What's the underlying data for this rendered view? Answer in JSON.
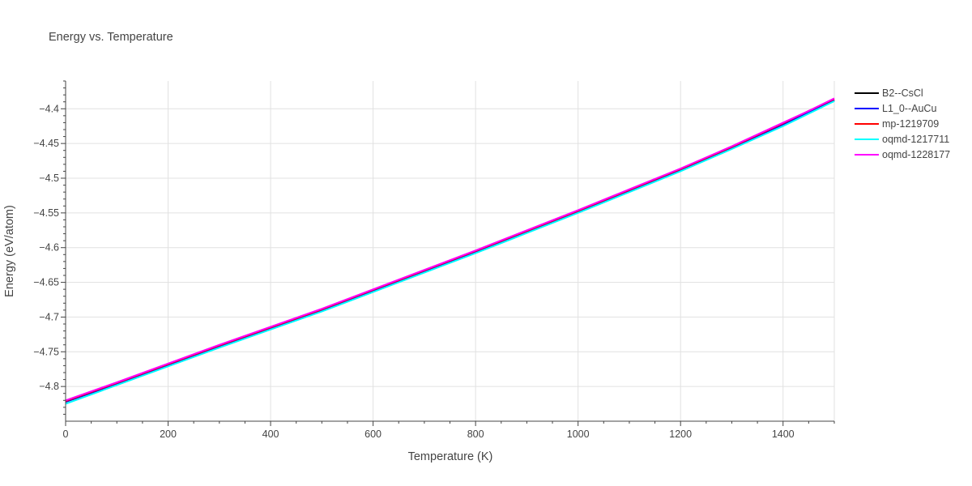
{
  "chart_data": {
    "type": "line",
    "title": "Energy vs. Temperature",
    "xlabel": "Temperature (K)",
    "ylabel": "Energy (eV/atom)",
    "xlim": [
      0,
      1500
    ],
    "ylim": [
      -4.85,
      -4.36
    ],
    "x_ticks": [
      0,
      200,
      400,
      600,
      800,
      1000,
      1200,
      1400
    ],
    "y_ticks": [
      -4.8,
      -4.75,
      -4.7,
      -4.65,
      -4.6,
      -4.55,
      -4.5,
      -4.45,
      -4.4
    ],
    "x_tick_labels": [
      "0",
      "200",
      "400",
      "600",
      "800",
      "1000",
      "1200",
      "1400"
    ],
    "y_tick_labels": [
      "−4.8",
      "−4.75",
      "−4.7",
      "−4.65",
      "−4.6",
      "−4.55",
      "−4.5",
      "−4.45",
      "−4.4"
    ],
    "grid": true,
    "legend_position": "top-right outside",
    "x": [
      0,
      100,
      200,
      300,
      400,
      500,
      600,
      700,
      800,
      900,
      1000,
      1100,
      1200,
      1300,
      1400,
      1450,
      1500
    ],
    "series": [
      {
        "name": "B2--CsCl",
        "color": "#000000",
        "values": [
          -4.822,
          -4.796,
          -4.769,
          -4.742,
          -4.716,
          -4.69,
          -4.662,
          -4.634,
          -4.606,
          -4.577,
          -4.548,
          -4.518,
          -4.488,
          -4.456,
          -4.423,
          -4.406,
          -4.388
        ]
      },
      {
        "name": "L1_0--AuCu",
        "color": "#0000ff",
        "values": [
          -4.822,
          -4.796,
          -4.769,
          -4.742,
          -4.716,
          -4.69,
          -4.662,
          -4.634,
          -4.606,
          -4.577,
          -4.548,
          -4.518,
          -4.488,
          -4.456,
          -4.423,
          -4.406,
          -4.388
        ]
      },
      {
        "name": "mp-1219709",
        "color": "#ff0000",
        "values": [
          -4.821,
          -4.795,
          -4.768,
          -4.741,
          -4.715,
          -4.689,
          -4.661,
          -4.633,
          -4.605,
          -4.576,
          -4.547,
          -4.517,
          -4.487,
          -4.455,
          -4.421,
          -4.403,
          -4.386
        ]
      },
      {
        "name": "oqmd-1217711",
        "color": "#00ffff",
        "values": [
          -4.825,
          -4.798,
          -4.771,
          -4.744,
          -4.718,
          -4.692,
          -4.664,
          -4.636,
          -4.608,
          -4.579,
          -4.55,
          -4.52,
          -4.49,
          -4.458,
          -4.425,
          -4.407,
          -4.389
        ]
      },
      {
        "name": "oqmd-1228177",
        "color": "#ff00ff",
        "values": [
          -4.82,
          -4.794,
          -4.767,
          -4.74,
          -4.714,
          -4.688,
          -4.66,
          -4.632,
          -4.604,
          -4.575,
          -4.546,
          -4.516,
          -4.486,
          -4.454,
          -4.42,
          -4.403,
          -4.385
        ]
      }
    ]
  }
}
